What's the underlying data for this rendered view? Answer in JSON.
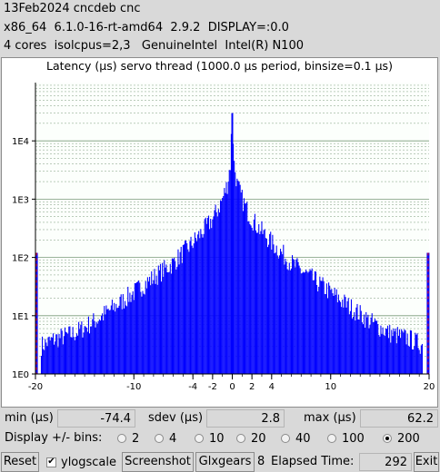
{
  "header": {
    "line1": "13Feb2024 cncdeb cnc",
    "line2": "x86_64  6.1.0-16-rt-amd64  2.9.2  DISPLAY=:0.0",
    "line3": "4 cores  isolcpus=2,3   GenuineIntel  Intel(R) N100"
  },
  "colors": {
    "bars": "#0000ff",
    "grid": "#7a9a7a",
    "edge_marker": "#ff0000",
    "plot_bg": "#ffffff",
    "window_bg": "#d9d9d9"
  },
  "chart_data": {
    "type": "bar",
    "title": "Latency (µs) servo thread (1000.0 µs period, binsize=0.1 µs)",
    "xlabel": "",
    "ylabel": "",
    "xlim": [
      -20,
      20
    ],
    "ylim": [
      1,
      100000
    ],
    "yscale": "log",
    "grid": true,
    "x_ticks": [
      "-20",
      "-10",
      "-4",
      "-2",
      "0",
      "2",
      "4",
      "10",
      "20"
    ],
    "x_tick_values": [
      -20,
      -10,
      -4,
      -2,
      0,
      2,
      4,
      10,
      20
    ],
    "y_ticks": [
      "1E0",
      "1E1",
      "1E2",
      "1E3",
      "1E4"
    ],
    "y_tick_values": [
      1,
      10,
      100,
      1000,
      10000
    ],
    "profile_x": [
      -20,
      -19.5,
      -18,
      -16,
      -14,
      -12,
      -10,
      -8,
      -6,
      -5,
      -4,
      -3,
      -2,
      -1.5,
      -1,
      -0.5,
      -0.2,
      0,
      0.2,
      0.5,
      1,
      1.5,
      2,
      3,
      4,
      5,
      6,
      8,
      10,
      12,
      14,
      16,
      18,
      19.5,
      20
    ],
    "profile_counts": [
      120,
      3,
      4,
      5,
      8,
      14,
      25,
      45,
      80,
      120,
      180,
      280,
      450,
      650,
      1000,
      1800,
      4000,
      30000,
      4000,
      1800,
      1000,
      650,
      450,
      280,
      180,
      120,
      80,
      45,
      25,
      14,
      8,
      5,
      4,
      3,
      120
    ]
  },
  "stats": {
    "min_label": "min (µs)",
    "min_value": "-74.4",
    "sdev_label": "sdev (µs)",
    "sdev_value": "2.8",
    "max_label": "max (µs)",
    "max_value": "62.2"
  },
  "bins": {
    "label": "Display +/- bins:",
    "options": [
      "2",
      "4",
      "10",
      "20",
      "40",
      "100",
      "200"
    ],
    "selected": "200"
  },
  "footer": {
    "reset": "Reset",
    "ylogscale": "ylogscale",
    "ylogscale_checked": true,
    "screenshot": "Screenshot",
    "glxgears": "Glxgears",
    "glx_count": "8",
    "elapsed_label": "Elapsed Time:",
    "elapsed_value": "292",
    "exit": "Exit"
  }
}
